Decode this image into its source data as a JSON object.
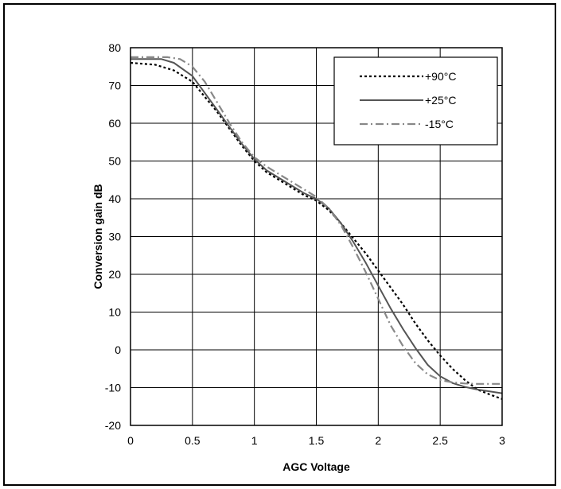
{
  "chart_data": {
    "type": "line",
    "xlabel": "AGC Voltage",
    "ylabel": "Conversion gain dB",
    "xlim": [
      0,
      3
    ],
    "ylim": [
      -20,
      80
    ],
    "xticks": [
      0,
      0.5,
      1,
      1.5,
      2,
      2.5,
      3
    ],
    "xtick_labels": [
      "0",
      "0.5",
      "1",
      "1.5",
      "2",
      "2.5",
      "3"
    ],
    "yticks": [
      -20,
      -10,
      0,
      10,
      20,
      30,
      40,
      50,
      60,
      70,
      80
    ],
    "ytick_labels": [
      "-20",
      "-10",
      "0",
      "10",
      "20",
      "30",
      "40",
      "50",
      "60",
      "70",
      "80"
    ],
    "grid": true,
    "legend_position": "top-right",
    "series": [
      {
        "name": "+90°C",
        "style": "dotted",
        "color": "#000000",
        "x": [
          0,
          0.2,
          0.35,
          0.5,
          0.6,
          0.7,
          0.8,
          0.9,
          1.0,
          1.1,
          1.2,
          1.3,
          1.4,
          1.5,
          1.6,
          1.7,
          1.8,
          1.9,
          2.0,
          2.1,
          2.2,
          2.3,
          2.4,
          2.5,
          2.6,
          2.7,
          2.8,
          2.9,
          3.0
        ],
        "y": [
          76,
          75.5,
          74,
          71,
          67,
          63,
          58.5,
          54,
          50,
          47,
          45,
          43,
          41,
          39.5,
          37,
          33.5,
          29.5,
          25.5,
          21,
          16.5,
          12,
          7,
          2.5,
          -1.5,
          -5,
          -8,
          -10.5,
          -11.8,
          -13
        ]
      },
      {
        "name": "+25°C",
        "style": "solid",
        "color": "#555555",
        "x": [
          0,
          0.25,
          0.35,
          0.5,
          0.6,
          0.7,
          0.8,
          0.9,
          1.0,
          1.1,
          1.2,
          1.3,
          1.4,
          1.5,
          1.6,
          1.7,
          1.8,
          1.9,
          2.0,
          2.1,
          2.2,
          2.3,
          2.4,
          2.5,
          2.6,
          2.7,
          2.8,
          2.9,
          3.0
        ],
        "y": [
          77,
          77,
          76,
          72.5,
          68,
          63.5,
          59,
          54.5,
          50.5,
          47.5,
          45.5,
          43.5,
          41.5,
          40,
          37.5,
          33.5,
          28.5,
          23,
          17,
          11,
          5.5,
          0.5,
          -4,
          -7,
          -8.8,
          -9.8,
          -10.5,
          -11,
          -11.5
        ]
      },
      {
        "name": "-15°C",
        "style": "dash-dot",
        "color": "#888888",
        "x": [
          0,
          0.3,
          0.4,
          0.5,
          0.6,
          0.7,
          0.8,
          0.9,
          1.0,
          1.1,
          1.2,
          1.3,
          1.4,
          1.5,
          1.6,
          1.7,
          1.8,
          1.9,
          2.0,
          2.1,
          2.2,
          2.3,
          2.4,
          2.5,
          2.6,
          2.7,
          2.8,
          2.9,
          3.0
        ],
        "y": [
          77.5,
          77.5,
          77,
          75,
          71,
          65.5,
          60,
          55,
          51,
          48.5,
          46.5,
          44.5,
          42.5,
          40.5,
          37.5,
          33,
          27,
          20.5,
          13.5,
          6.5,
          1,
          -3.5,
          -6.5,
          -8,
          -8.6,
          -8.9,
          -9,
          -9,
          -9
        ]
      }
    ]
  }
}
